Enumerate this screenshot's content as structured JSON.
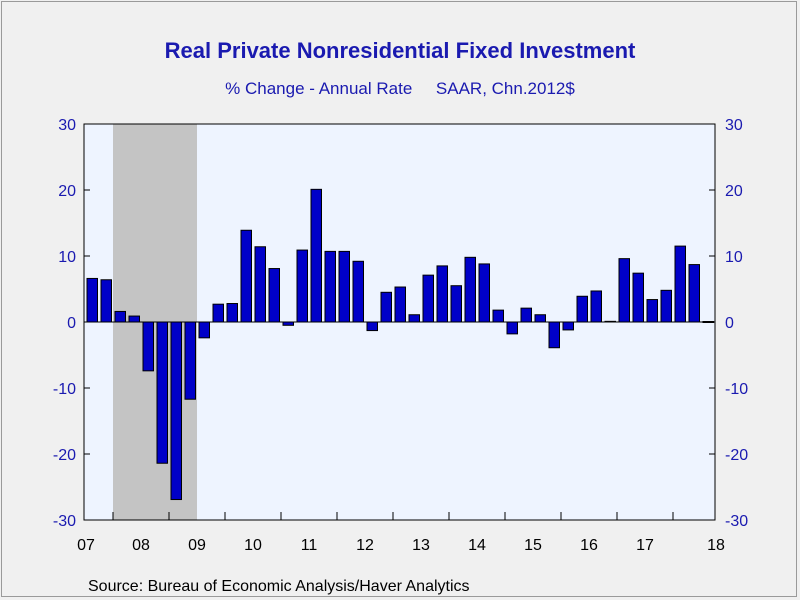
{
  "colors": {
    "title": "#1a1ab0",
    "bar_fill": "#0000c8",
    "bar_stroke": "#000000",
    "plot_background": "#eef4ff",
    "recession_shade": "#c4c4c4",
    "page_background": "#f0f0f0",
    "axis_tick_labels": "#1a1ab0",
    "date_tick_labels": "#000000"
  },
  "header": {
    "title": "Real Private Nonresidential Fixed Investment",
    "subtitle": "% Change - Annual Rate     SAAR, Chn.2012$"
  },
  "footer": {
    "source": "Source:  Bureau of Economic Analysis/Haver Analytics"
  },
  "chart_data": {
    "type": "bar",
    "title": "Real Private Nonresidential Fixed Investment",
    "subtitle": "% Change - Annual Rate     SAAR, Chn.2012$",
    "frequency": "quarterly",
    "x_start": "2007Q3",
    "x_tick_labels": [
      "07",
      "08",
      "09",
      "10",
      "11",
      "12",
      "13",
      "14",
      "15",
      "16",
      "17",
      "18"
    ],
    "ylim": [
      -30,
      30
    ],
    "y_ticks": [
      30,
      20,
      10,
      0,
      -10,
      -20,
      -30
    ],
    "dual_y_axis": true,
    "grid": false,
    "recession_shading": {
      "start": "2008Q1",
      "end": "2009Q2"
    },
    "categories": [
      "2007Q3",
      "2007Q4",
      "2008Q1",
      "2008Q2",
      "2008Q3",
      "2008Q4",
      "2009Q1",
      "2009Q2",
      "2009Q3",
      "2009Q4",
      "2010Q1",
      "2010Q2",
      "2010Q3",
      "2010Q4",
      "2011Q1",
      "2011Q2",
      "2011Q3",
      "2011Q4",
      "2012Q1",
      "2012Q2",
      "2012Q3",
      "2012Q4",
      "2013Q1",
      "2013Q2",
      "2013Q3",
      "2013Q4",
      "2014Q1",
      "2014Q2",
      "2014Q3",
      "2014Q4",
      "2015Q1",
      "2015Q2",
      "2015Q3",
      "2015Q4",
      "2016Q1",
      "2016Q2",
      "2016Q3",
      "2016Q4",
      "2017Q1",
      "2017Q2",
      "2017Q3",
      "2017Q4",
      "2018Q1",
      "2018Q2",
      "2018Q3"
    ],
    "values": [
      6.6,
      6.4,
      1.6,
      0.9,
      -7.4,
      -21.4,
      -26.9,
      -11.7,
      -2.4,
      2.7,
      2.8,
      13.9,
      11.4,
      8.1,
      -0.5,
      10.9,
      20.1,
      10.7,
      10.7,
      9.2,
      -1.3,
      4.5,
      5.3,
      1.1,
      7.1,
      8.5,
      5.5,
      9.8,
      8.8,
      1.8,
      -1.8,
      2.1,
      1.1,
      -3.9,
      -1.2,
      3.9,
      4.7,
      0.1,
      9.6,
      7.4,
      3.4,
      4.8,
      11.5,
      8.7,
      0.0
    ]
  }
}
